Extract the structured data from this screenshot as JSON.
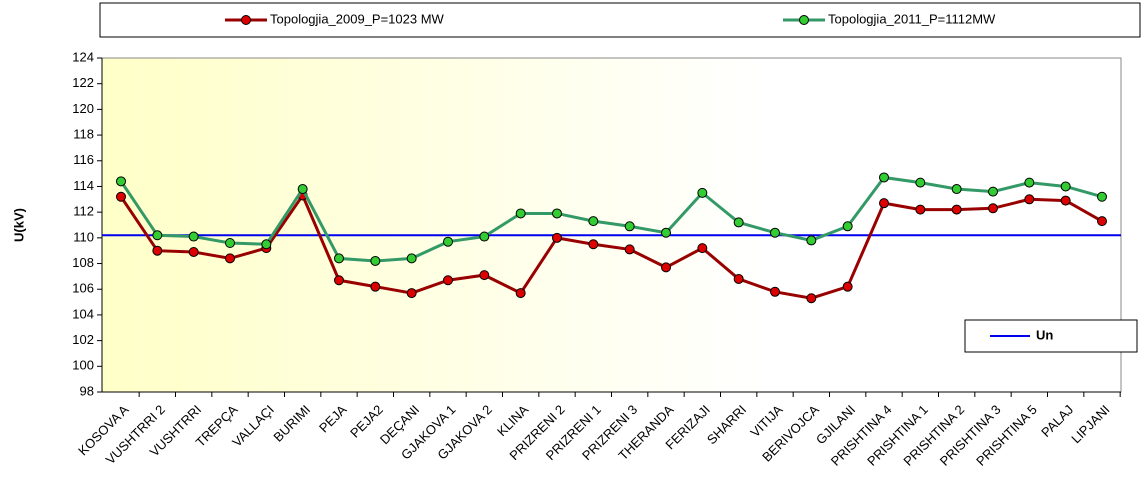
{
  "chart_data": {
    "type": "line",
    "y_label": "U(kV)",
    "categories": [
      "KOSOVA A",
      "VUSHTRRI 2",
      "VUSHTRRI",
      "TREPÇA",
      "VALLAÇI",
      "BURIMI",
      "PEJA",
      "PEJA2",
      "DEÇANI",
      "GJAKOVA 1",
      "GJAKOVA 2",
      "KLINA",
      "PRIZRENI 2",
      "PRIZRENI 1",
      "PRIZRENI 3",
      "THERANDA",
      "FERIZAJI",
      "SHARRI",
      "VITIJA",
      "BERIVOJCA",
      "GJILANI",
      "PRISHTINA 4",
      "PRISHTINA 1",
      "PRISHTINA 2",
      "PRISHTINA 3",
      "PRISHTINA 5",
      "PALAJ",
      "LIPJANI"
    ],
    "series": [
      {
        "name": "Topologjia_2009_P=1023 MW",
        "color": "#990000",
        "marker_color": "#dd0000",
        "values": [
          113.2,
          109.0,
          108.9,
          108.4,
          109.2,
          113.3,
          106.7,
          106.2,
          105.7,
          106.7,
          107.1,
          105.7,
          110.0,
          109.5,
          109.1,
          107.7,
          109.2,
          106.8,
          105.8,
          105.3,
          106.2,
          112.7,
          112.2,
          112.2,
          112.3,
          113.0,
          112.9,
          111.3
        ]
      },
      {
        "name": "Topologjia_2011_P=1112MW",
        "color": "#339966",
        "marker_color": "#33cc33",
        "values": [
          114.4,
          110.2,
          110.1,
          109.6,
          109.5,
          113.8,
          108.4,
          108.2,
          108.4,
          109.7,
          110.1,
          111.9,
          111.9,
          111.3,
          110.9,
          110.4,
          113.5,
          111.2,
          110.4,
          109.8,
          110.9,
          114.7,
          114.3,
          113.8,
          113.6,
          114.3,
          114.0,
          113.2
        ]
      }
    ],
    "reference_line": {
      "name": "Un",
      "value": 110.2,
      "color": "#0000ee"
    },
    "ylim": [
      98,
      124
    ],
    "yticks": [
      98,
      100,
      102,
      104,
      106,
      108,
      110,
      112,
      114,
      116,
      118,
      120,
      122,
      124
    ]
  }
}
